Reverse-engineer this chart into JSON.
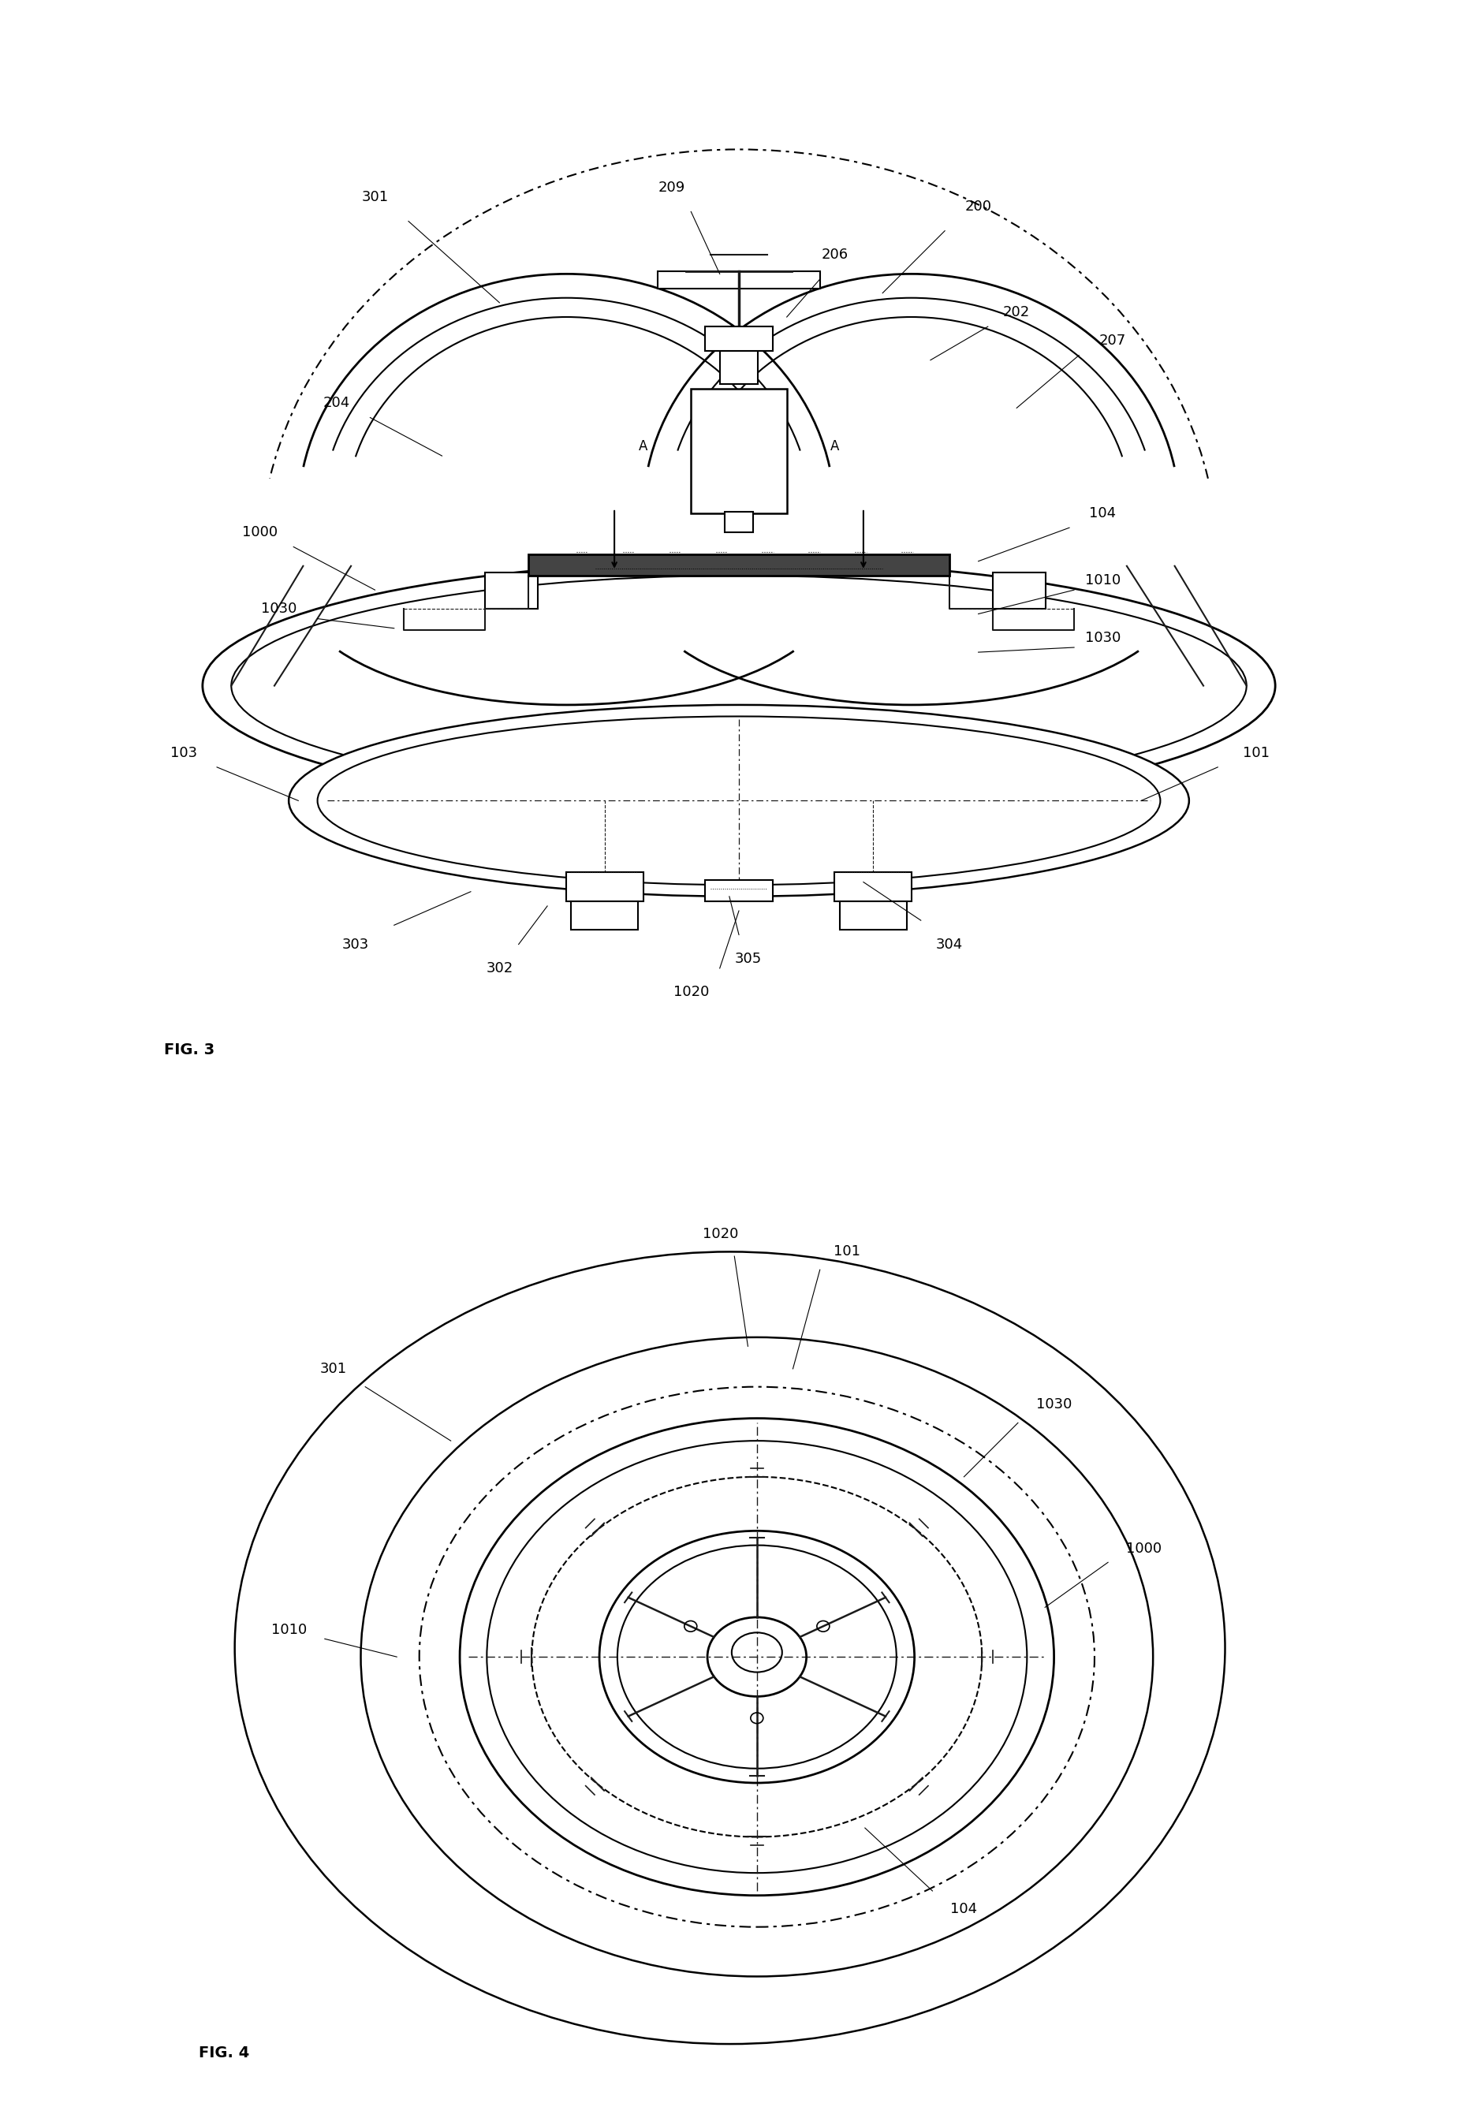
{
  "background_color": "#ffffff",
  "line_color": "#1a1a1a",
  "line_width": 1.5,
  "fig3_label": "FIG. 3",
  "fig4_label": "FIG. 4",
  "label_fontsize": 13,
  "figlabel_fontsize": 14
}
